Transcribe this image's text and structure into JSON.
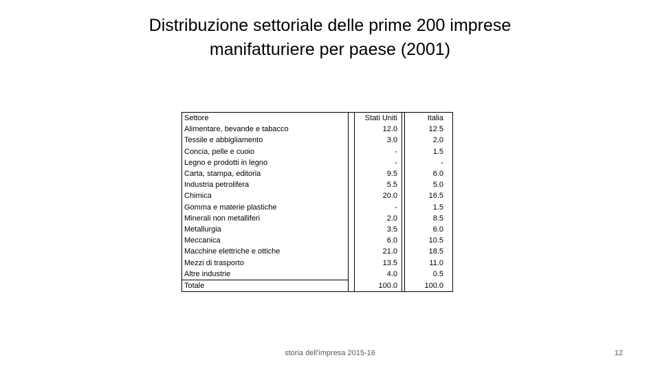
{
  "slide": {
    "title_line1": "Distribuzione settoriale delle prime 200 imprese",
    "title_line2": "manifatturiere per paese (2001)",
    "footer": "storia dell'impresa 2015-16",
    "page_number": "12"
  },
  "table": {
    "headers": [
      "Settore",
      "Stati Uniti",
      "Italia"
    ],
    "rows": [
      [
        "Alimentare, bevande e tabacco",
        "12.0",
        "12.5"
      ],
      [
        "Tessile e abbigliamento",
        "3.0",
        "2.0"
      ],
      [
        "Concia, pelle e cuoio",
        "-",
        "1.5"
      ],
      [
        "Legno e prodotti in legno",
        "-",
        "-"
      ],
      [
        "Carta, stampa, editoria",
        "9.5",
        "6.0"
      ],
      [
        "Industria petrolifera",
        "5.5",
        "5.0"
      ],
      [
        "Chimica",
        "20.0",
        "16.5"
      ],
      [
        "Gomma e materie plastiche",
        "-",
        "1.5"
      ],
      [
        "Minerali non metalliferi",
        "2.0",
        "8.5"
      ],
      [
        "Metallurgia",
        "3.5",
        "6.0"
      ],
      [
        "Meccanica",
        "6.0",
        "10.5"
      ],
      [
        "Macchine elettriche e ottiche",
        "21.0",
        "18.5"
      ],
      [
        "Mezzi di trasporto",
        "13.5",
        "11.0"
      ],
      [
        "Altre industrie",
        "4.0",
        "0.5"
      ]
    ],
    "total": [
      "Totale",
      "100.0",
      "100.0"
    ]
  }
}
